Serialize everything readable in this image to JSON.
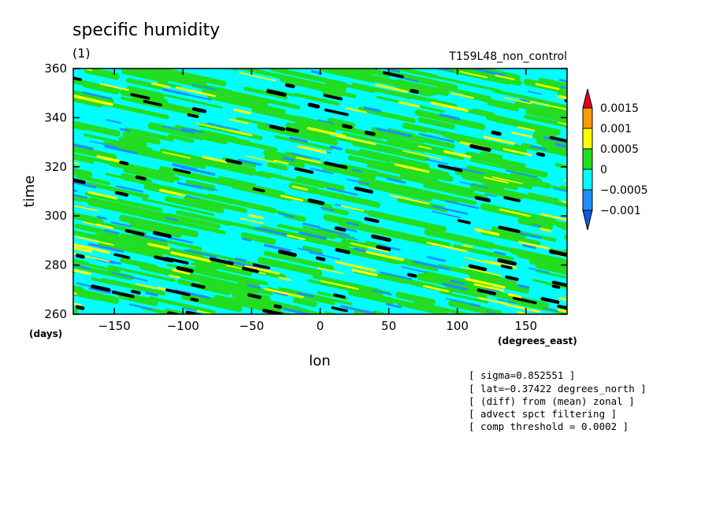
{
  "chart_data": {
    "type": "heatmap",
    "title": "specific humidity",
    "subtitle": "(1)",
    "run_label": "T159L48_non_control",
    "xlabel": "lon",
    "ylabel": "time",
    "x_unit": "(degrees_east)",
    "y_unit": "(days)",
    "xlim": [
      -180,
      180
    ],
    "ylim": [
      260,
      360
    ],
    "x_ticks": [
      -150,
      -100,
      -50,
      0,
      50,
      100,
      150
    ],
    "x_tick_labels": [
      "−150",
      "−100",
      "−50",
      "0",
      "50",
      "100",
      "150"
    ],
    "y_ticks": [
      260,
      280,
      300,
      320,
      340,
      360
    ],
    "y_tick_labels": [
      "260",
      "280",
      "300",
      "320",
      "340",
      "360"
    ],
    "colorbar": {
      "levels": [
        0.0015,
        0.001,
        0.0005,
        0,
        -0.0005,
        -0.001
      ],
      "labels": [
        "0.0015",
        "0.001",
        "0.0005",
        "0",
        "−0.0005",
        "−0.001"
      ],
      "colors": {
        "above_0.0015": "#e8001c",
        "0.001_to_0.0015": "#ff9a00",
        "0.0005_to_0.001": "#ffff00",
        "0_to_0.0005": "#22dd22",
        "-0.0005_to_0": "#00ffff",
        "-0.001_to_-0.0005": "#1e90ff",
        "below_-0.001": "#0a5cdc"
      }
    },
    "grid": false,
    "legend": "right",
    "annotations": [
      "[ sigma=0.852551 ]",
      "[ lat=−0.37422 degrees_north ]",
      "[ (diff) from (mean) zonal ]",
      "[ advect spct filtering ]",
      "[ comp threshold = 0.0002 ]"
    ]
  }
}
